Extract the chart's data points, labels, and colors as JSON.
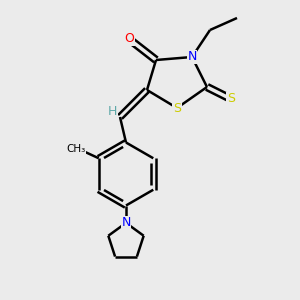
{
  "bg_color": "#ebebeb",
  "bond_color": "#000000",
  "atom_colors": {
    "O": "#ff0000",
    "N": "#0000ff",
    "S": "#cccc00",
    "H": "#5fa8a8",
    "C": "#000000"
  },
  "line_width": 1.8,
  "dbo": 0.08
}
